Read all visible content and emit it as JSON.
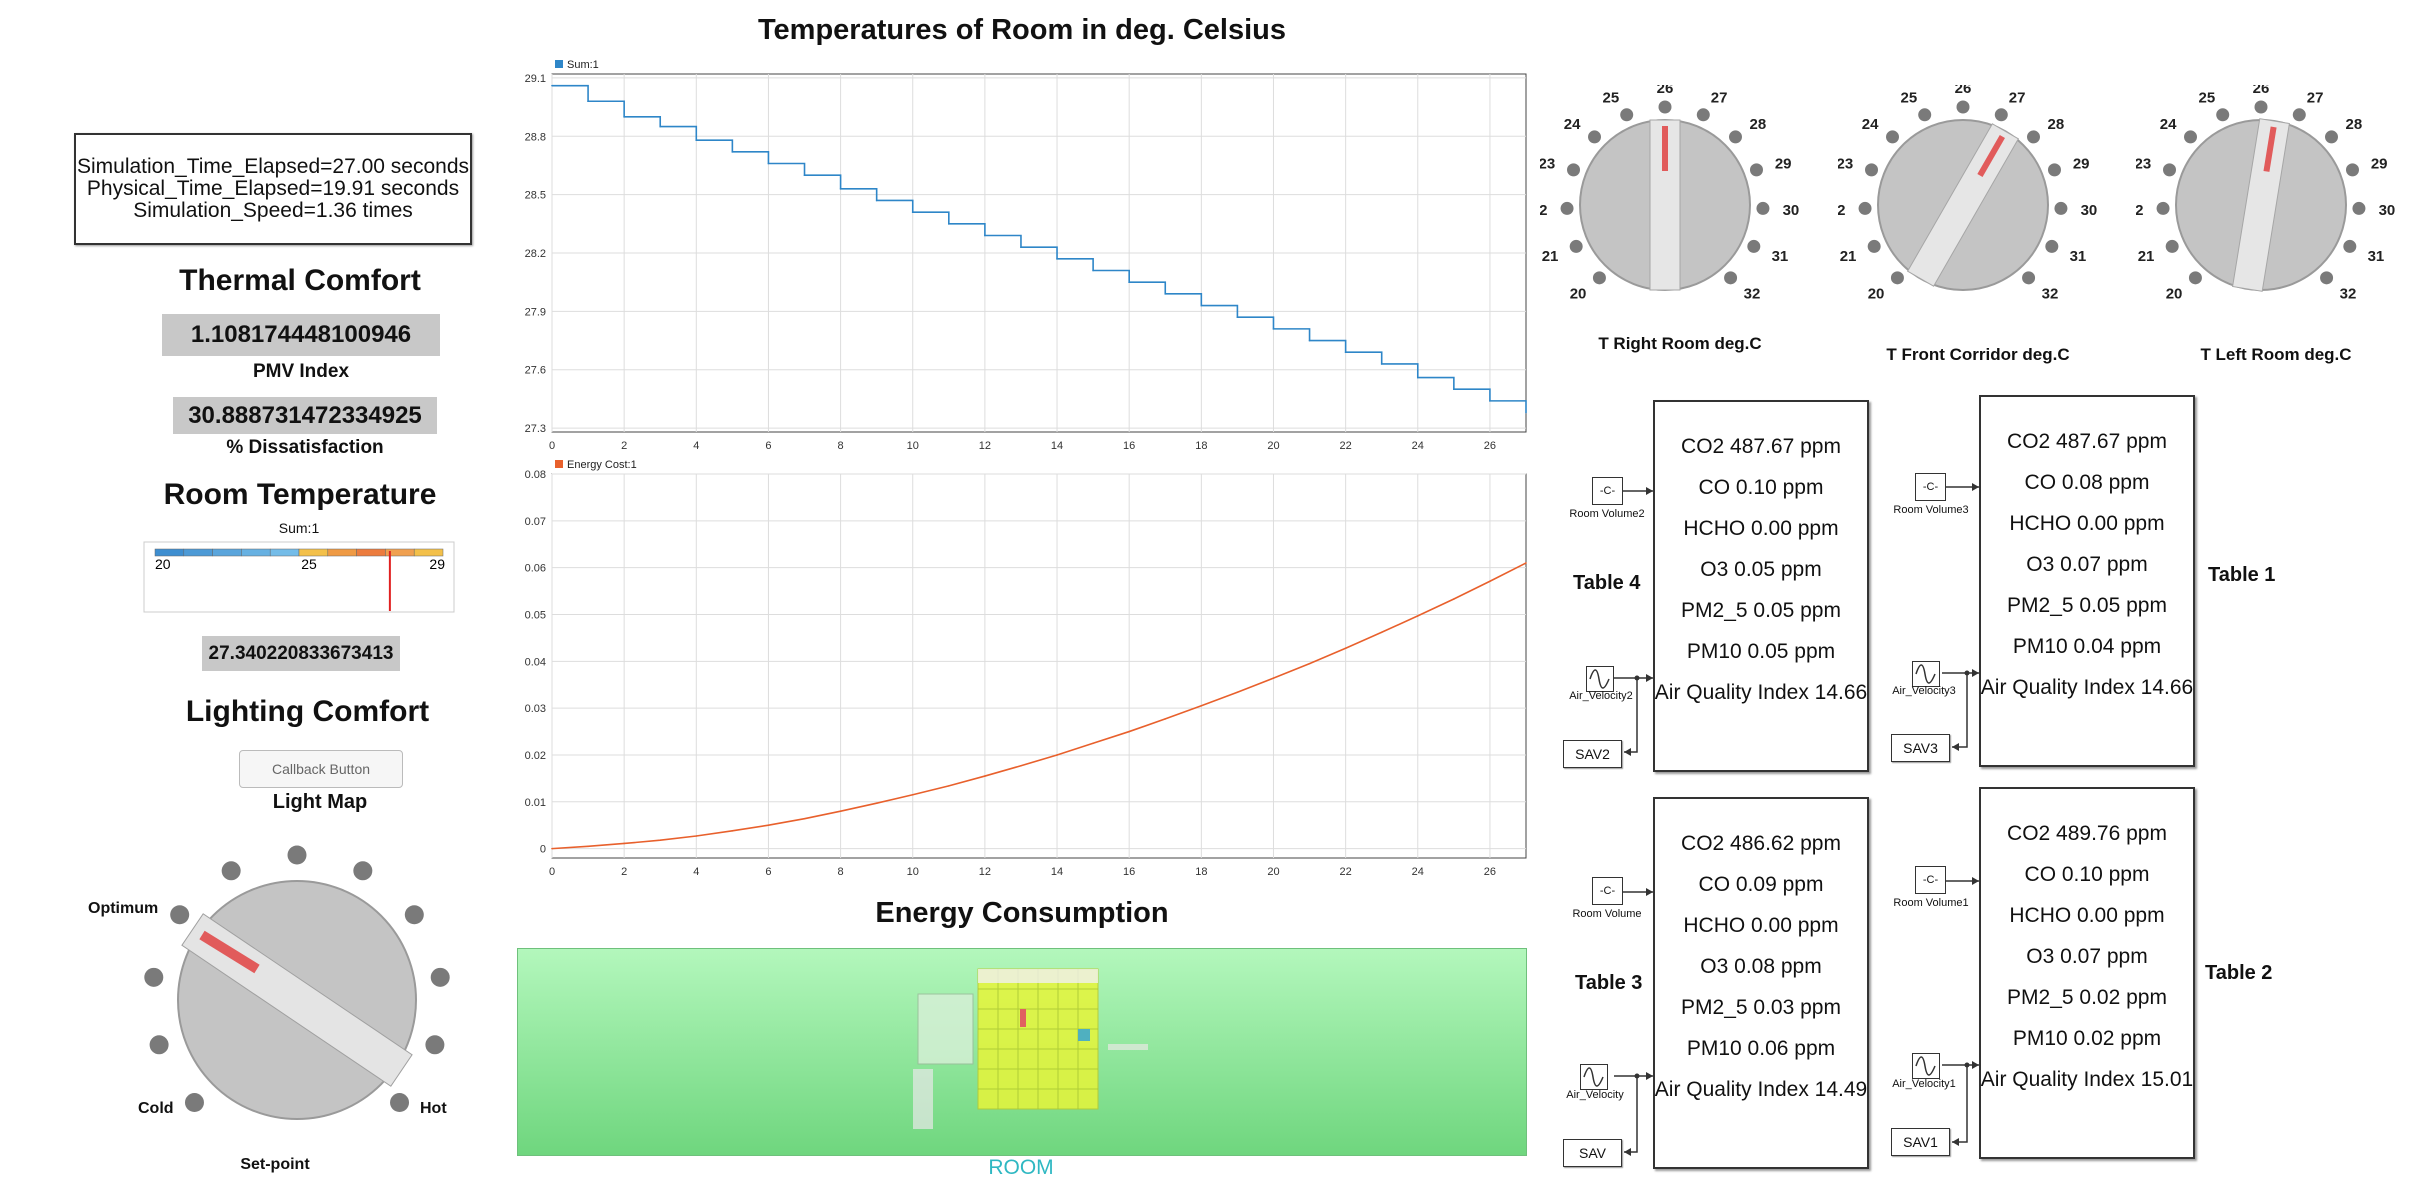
{
  "simulation": {
    "time_elapsed": "Simulation_Time_Elapsed=27.00 seconds",
    "physical_elapsed": "Physical_Time_Elapsed=19.91 seconds",
    "speed": "Simulation_Speed=1.36 times"
  },
  "thermal_comfort": {
    "title": "Thermal Comfort",
    "pmv_value": "1.108174448100946",
    "pmv_label": "PMV Index",
    "dissatisfaction_value": "30.888731472334925",
    "dissatisfaction_label": "% Dissatisfaction"
  },
  "room_temperature": {
    "title": "Room Temperature",
    "gauge_label": "Sum:1",
    "gauge_min": "20",
    "gauge_mid": "25",
    "gauge_max": "29",
    "gauge_value": 27.34,
    "value": "27.340220833673413"
  },
  "lighting_comfort": {
    "title": "Lighting Comfort",
    "callback_button": "Callback Button",
    "light_map": "Light Map"
  },
  "setpoint_knob": {
    "label_optimum": "Optimum",
    "label_cold": "Cold",
    "label_hot": "Hot",
    "caption": "Set-point"
  },
  "temperature_chart_title": "Temperatures of Room in deg. Celsius",
  "energy_chart_title": "Energy Consumption",
  "room_label": "ROOM",
  "chart_data": [
    {
      "type": "line",
      "step": true,
      "legend": "Sum:1",
      "color": "#2e86c8",
      "xlim": [
        0,
        27
      ],
      "ylim": [
        27.28,
        29.12
      ],
      "x_ticks": [
        "0",
        "2",
        "4",
        "6",
        "8",
        "10",
        "12",
        "14",
        "16",
        "18",
        "20",
        "22",
        "24",
        "26"
      ],
      "y_ticks": [
        "27.3",
        "27.6",
        "27.9",
        "28.2",
        "28.5",
        "28.8",
        "29.1"
      ],
      "x": [
        0,
        1,
        2,
        3,
        4,
        5,
        6,
        7,
        8,
        9,
        10,
        11,
        12,
        13,
        14,
        15,
        16,
        17,
        18,
        19,
        20,
        21,
        22,
        23,
        24,
        25,
        26,
        27
      ],
      "y": [
        29.06,
        28.98,
        28.9,
        28.85,
        28.78,
        28.72,
        28.66,
        28.6,
        28.53,
        28.47,
        28.41,
        28.35,
        28.29,
        28.23,
        28.17,
        28.11,
        28.05,
        27.99,
        27.93,
        27.87,
        27.81,
        27.75,
        27.69,
        27.63,
        27.56,
        27.5,
        27.44,
        27.38
      ],
      "grid": true
    },
    {
      "type": "line",
      "legend": "Energy Cost:1",
      "color": "#e8602c",
      "xlim": [
        0,
        27
      ],
      "ylim": [
        -0.002,
        0.08
      ],
      "x_ticks": [
        "0",
        "2",
        "4",
        "6",
        "8",
        "10",
        "12",
        "14",
        "16",
        "18",
        "20",
        "22",
        "24",
        "26"
      ],
      "y_ticks": [
        "0",
        "0.01",
        "0.02",
        "0.03",
        "0.04",
        "0.05",
        "0.06",
        "0.07",
        "0.08"
      ],
      "x": [
        0,
        1,
        2,
        3,
        4,
        5,
        6,
        7,
        8,
        9,
        10,
        11,
        12,
        13,
        14,
        15,
        16,
        17,
        18,
        19,
        20,
        21,
        22,
        23,
        24,
        25,
        26,
        27
      ],
      "y": [
        0,
        0.0005,
        0.0011,
        0.0018,
        0.0027,
        0.0038,
        0.005,
        0.0064,
        0.008,
        0.0097,
        0.0115,
        0.0134,
        0.0155,
        0.0177,
        0.02,
        0.0225,
        0.025,
        0.0277,
        0.0305,
        0.0334,
        0.0364,
        0.0395,
        0.0428,
        0.0462,
        0.0497,
        0.0533,
        0.0571,
        0.061
      ],
      "grid": true
    }
  ],
  "temperature_knobs": [
    {
      "caption": "T Right Room deg.C",
      "value": 26.0
    },
    {
      "caption": "T Front Corridor deg.C",
      "value": 27.3
    },
    {
      "caption": "T Left Room deg.C",
      "value": 26.4
    }
  ],
  "knob_scale": [
    "20",
    "21",
    "22",
    "23",
    "24",
    "25",
    "26",
    "27",
    "28",
    "29",
    "30",
    "31",
    "32"
  ],
  "air_quality": [
    {
      "table_label": "Table 4",
      "const_label": "Room Volume2",
      "velocity_label": "Air_Velocity2",
      "sav_label": "SAV2",
      "rows": [
        "CO2 487.67 ppm",
        "CO 0.10 ppm",
        "HCHO 0.00 ppm",
        "O3 0.05 ppm",
        "PM2_5 0.05 ppm",
        "PM10 0.05 ppm",
        "Air Quality Index 14.66"
      ]
    },
    {
      "table_label": "Table 1",
      "const_label": "Room Volume3",
      "velocity_label": "Air_Velocity3",
      "sav_label": "SAV3",
      "rows": [
        "CO2 487.67 ppm",
        "CO 0.08 ppm",
        "HCHO 0.00 ppm",
        "O3 0.07 ppm",
        "PM2_5 0.05 ppm",
        "PM10 0.04 ppm",
        "Air Quality Index 14.66"
      ]
    },
    {
      "table_label": "Table 3",
      "const_label": "Room Volume",
      "velocity_label": "Air_Velocity",
      "sav_label": "SAV",
      "rows": [
        "CO2 486.62 ppm",
        "CO 0.09 ppm",
        "HCHO 0.00 ppm",
        "O3 0.08 ppm",
        "PM2_5 0.03 ppm",
        "PM10 0.06 ppm",
        "Air Quality Index 14.49"
      ]
    },
    {
      "table_label": "Table 2",
      "const_label": "Room Volume1",
      "velocity_label": "Air_Velocity1",
      "sav_label": "SAV1",
      "rows": [
        "CO2 489.76 ppm",
        "CO 0.10 ppm",
        "HCHO 0.00 ppm",
        "O3 0.07 ppm",
        "PM2_5 0.02 ppm",
        "PM10 0.02 ppm",
        "Air Quality Index 15.01"
      ]
    }
  ],
  "const_block_text": "-C-"
}
